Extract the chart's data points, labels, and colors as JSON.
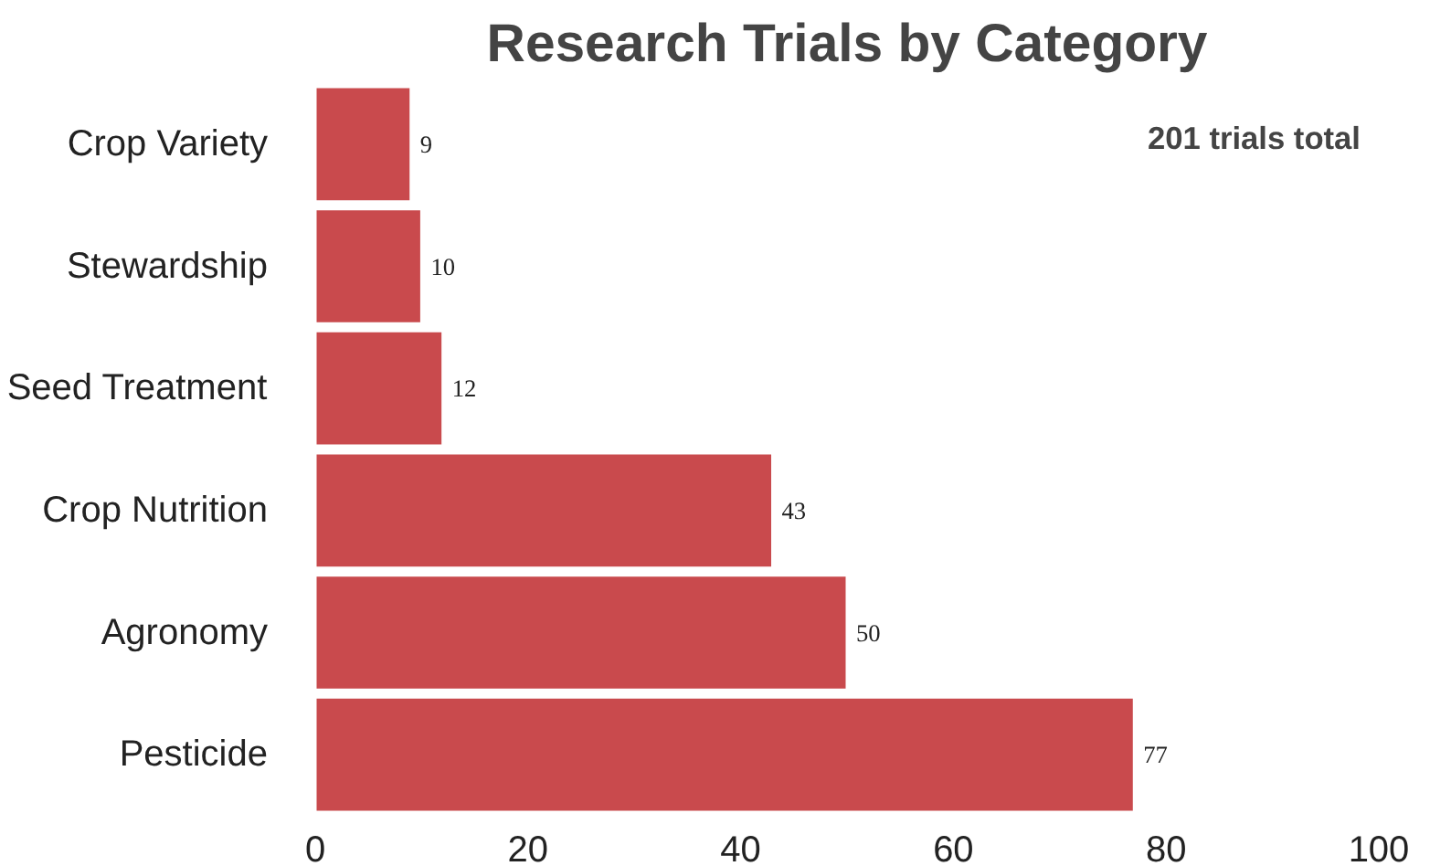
{
  "chart_data": {
    "type": "bar",
    "orientation": "horizontal",
    "title": "Research Trials by Category",
    "categories": [
      "Crop Variety",
      "Stewardship",
      "Seed Treatment",
      "Crop Nutrition",
      "Agronomy",
      "Pesticide"
    ],
    "values": [
      9,
      10,
      12,
      43,
      50,
      77
    ],
    "color": "#c94a4d",
    "xlim": [
      0,
      100
    ],
    "xticks": [
      0,
      20,
      40,
      60,
      80,
      100
    ],
    "grid": false,
    "data_labels": true,
    "annotations": [
      "201 trials total"
    ]
  }
}
